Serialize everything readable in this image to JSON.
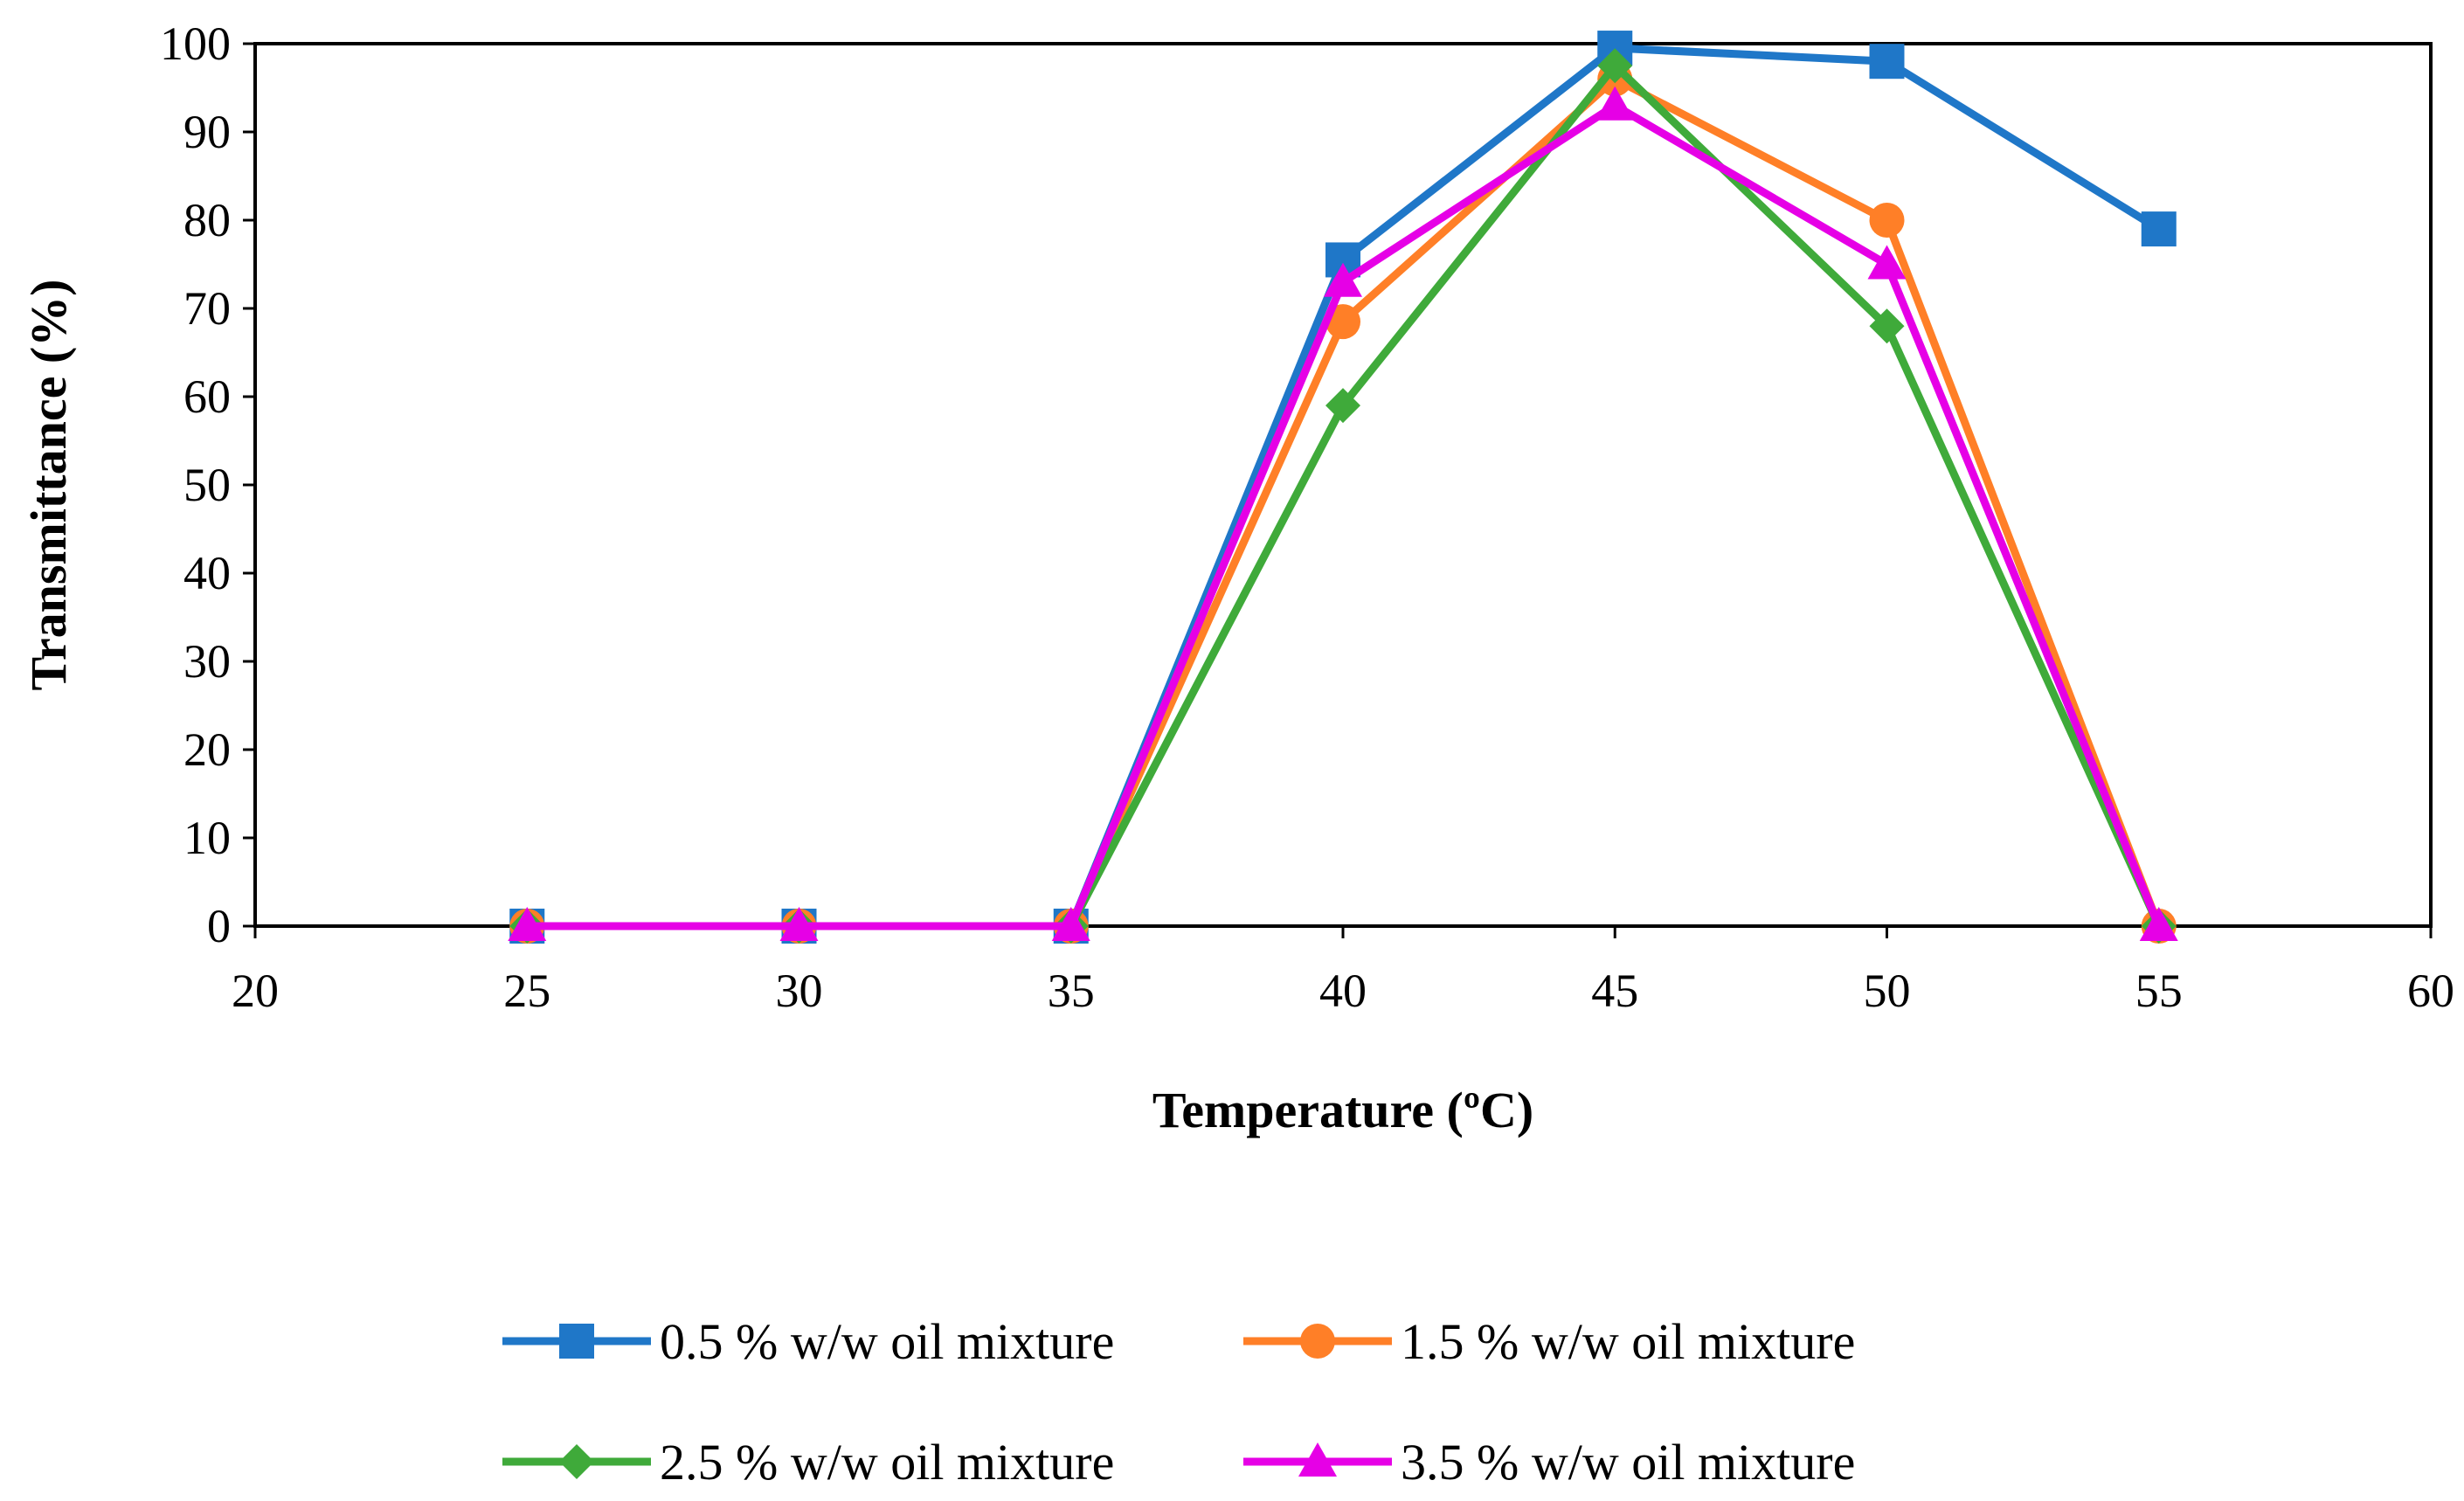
{
  "chart_data": {
    "type": "line",
    "title": "",
    "xlabel": "Temperature (ºC)",
    "ylabel": "Transmittance (%)",
    "xlim": [
      20,
      60
    ],
    "ylim": [
      0,
      100
    ],
    "xticks": [
      20,
      25,
      30,
      35,
      40,
      45,
      50,
      55,
      60
    ],
    "yticks": [
      0,
      10,
      20,
      30,
      40,
      50,
      60,
      70,
      80,
      90,
      100
    ],
    "grid": false,
    "legend_position": "bottom",
    "series": [
      {
        "name": "0.5 % w/w oil mixture",
        "color": "#1F77C8",
        "marker": "square",
        "x": [
          25,
          30,
          35,
          40,
          45,
          50,
          55
        ],
        "y": [
          0,
          0,
          0,
          75.5,
          99.5,
          98,
          79
        ]
      },
      {
        "name": "1.5 % w/w oil mixture",
        "color": "#FF7F27",
        "marker": "circle",
        "x": [
          25,
          30,
          35,
          40,
          45,
          50,
          55
        ],
        "y": [
          0,
          0,
          0,
          68.5,
          96,
          80,
          0
        ]
      },
      {
        "name": "2.5 % w/w oil mixture",
        "color": "#3FAA3A",
        "marker": "diamond",
        "x": [
          25,
          30,
          35,
          40,
          45,
          50,
          55
        ],
        "y": [
          0,
          0,
          0,
          59,
          97.5,
          68,
          0
        ]
      },
      {
        "name": "3.5 % w/w oil mixture",
        "color": "#E600E6",
        "marker": "triangle",
        "x": [
          25,
          30,
          35,
          40,
          45,
          50,
          55
        ],
        "y": [
          0,
          0,
          0,
          73,
          93,
          75,
          0
        ]
      }
    ]
  }
}
